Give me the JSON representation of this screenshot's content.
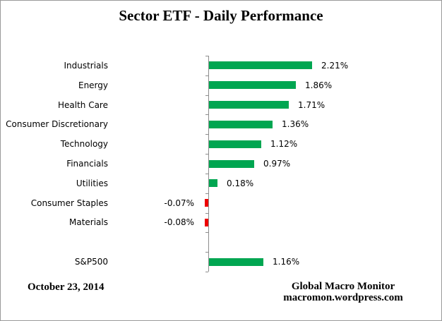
{
  "header": {
    "title": "Sector ETF - Daily Performance"
  },
  "footer": {
    "date": "October 23, 2014",
    "credit_line1": "Global Macro Monitor",
    "credit_line2": "macromon.wordpress.com"
  },
  "chart_data": {
    "type": "bar",
    "orientation": "horizontal",
    "title": "Sector ETF - Daily Performance",
    "categories": [
      "Industrials",
      "Energy",
      "Health Care",
      "Consumer Discretionary",
      "Technology",
      "Financials",
      "Utilities",
      "Consumer Staples",
      "Materials",
      "",
      "S&P500"
    ],
    "values": [
      2.21,
      1.86,
      1.71,
      1.36,
      1.12,
      0.97,
      0.18,
      -0.07,
      -0.08,
      null,
      1.16
    ],
    "value_labels": [
      "2.21%",
      "1.86%",
      "1.71%",
      "1.36%",
      "1.12%",
      "0.97%",
      "0.18%",
      "-0.07%",
      "-0.08%",
      "",
      "1.16%"
    ],
    "unit": "percent",
    "positive_color": "#00A651",
    "negative_color": "#EE0000",
    "axis_color": "#8c8c8c",
    "grid": "off",
    "legend": "off",
    "data_labels": "outside-end"
  }
}
